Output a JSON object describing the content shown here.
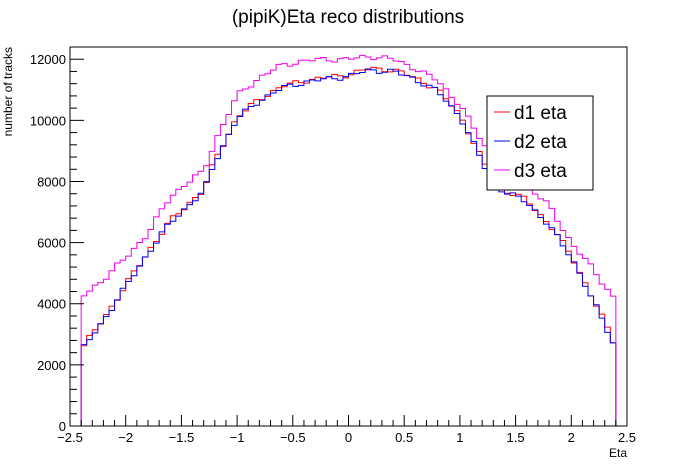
{
  "chart_data": {
    "type": "line",
    "title": "(pipiK)Eta reco distributions",
    "xlabel": "Eta",
    "ylabel": "number of tracks",
    "xlim": [
      -2.5,
      2.5
    ],
    "ylim": [
      0,
      12400
    ],
    "x_ticks": [
      -2.5,
      -2,
      -1.5,
      -1,
      -0.5,
      0,
      0.5,
      1,
      1.5,
      2,
      2.5
    ],
    "x_tick_labels": [
      "−2.5",
      "−2",
      "−1.5",
      "−1",
      "−0.5",
      "0",
      "0.5",
      "1",
      "1.5",
      "2",
      "2.5"
    ],
    "y_ticks": [
      0,
      2000,
      4000,
      6000,
      8000,
      10000,
      12000
    ],
    "y_tick_labels": [
      "0",
      "2000",
      "4000",
      "6000",
      "8000",
      "10000",
      "12000"
    ],
    "grid": false,
    "legend_position": "top-right",
    "x_knots": [
      -2.4,
      -2.3,
      -2.2,
      -2.0,
      -1.8,
      -1.6,
      -1.4,
      -1.3,
      -1.2,
      -1.0,
      -0.8,
      -0.6,
      -0.4,
      -0.2,
      0.0,
      0.2,
      0.4,
      0.6,
      0.8,
      1.0,
      1.2,
      1.3,
      1.4,
      1.6,
      1.8,
      2.0,
      2.2,
      2.3,
      2.4
    ],
    "series": [
      {
        "name": "d1 eta",
        "color": "#ff0000",
        "knots": [
          2500,
          3000,
          3500,
          4600,
          5700,
          6700,
          7400,
          7700,
          8700,
          10100,
          10700,
          11100,
          11300,
          11400,
          11500,
          11700,
          11650,
          11400,
          11000,
          10200,
          8700,
          8000,
          7700,
          7400,
          6600,
          5600,
          4100,
          3400,
          2600
        ]
      },
      {
        "name": "d2 eta",
        "color": "#0000ff",
        "knots": [
          2450,
          2950,
          3450,
          4550,
          5650,
          6650,
          7350,
          7650,
          8650,
          10050,
          10650,
          11050,
          11250,
          11350,
          11450,
          11650,
          11600,
          11350,
          10950,
          10150,
          8650,
          7950,
          7650,
          7350,
          6550,
          5550,
          4050,
          3350,
          2550
        ]
      },
      {
        "name": "d3 eta",
        "color": "#ee00ee",
        "knots": [
          4200,
          4500,
          4800,
          5500,
          6300,
          7500,
          8100,
          8300,
          9300,
          10800,
          11400,
          11800,
          11950,
          12000,
          12000,
          12100,
          12000,
          11700,
          11300,
          10500,
          9300,
          8700,
          8300,
          7900,
          7200,
          6000,
          5100,
          4600,
          4100
        ]
      }
    ]
  }
}
